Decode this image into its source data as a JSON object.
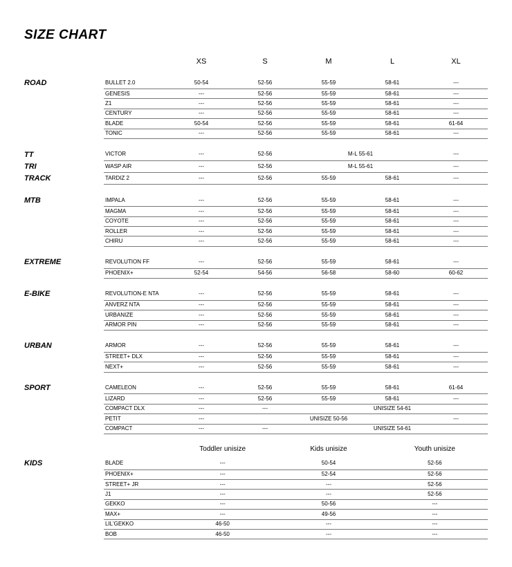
{
  "title": "SIZE CHART",
  "headers": [
    "XS",
    "S",
    "M",
    "L",
    "XL"
  ],
  "kidsHeaders": [
    "Toddler unisize",
    "Kids unisize",
    "Youth unisize"
  ],
  "sections": [
    {
      "category": "ROAD",
      "catRows": 1,
      "rows": [
        {
          "model": "BULLET 2.0",
          "cells": [
            "50-54",
            "52-56",
            "55-59",
            "58-61",
            "---"
          ]
        },
        {
          "model": "GENESIS",
          "cells": [
            "---",
            "52-56",
            "55-59",
            "58-61",
            "---"
          ]
        },
        {
          "model": "Z1",
          "cells": [
            "---",
            "52-56",
            "55-59",
            "58-61",
            "---"
          ]
        },
        {
          "model": "CENTURY",
          "cells": [
            "---",
            "52-56",
            "55-59",
            "58-61",
            "---"
          ]
        },
        {
          "model": "BLADE",
          "cells": [
            "50-54",
            "52-56",
            "55-59",
            "58-61",
            "61-64"
          ]
        },
        {
          "model": "TONIC",
          "cells": [
            "---",
            "52-56",
            "55-59",
            "58-61",
            "---"
          ]
        }
      ]
    },
    {
      "category": [
        "TT",
        "TRI",
        "TRACK"
      ],
      "catRows": 3,
      "rows": [
        {
          "model": "VICTOR",
          "cells": [
            "---",
            "52-56",
            {
              "span": 2,
              "text": "M-L 55-61"
            },
            "---"
          ]
        },
        {
          "model": "WASP AIR",
          "cells": [
            "---",
            "52-56",
            {
              "span": 2,
              "text": "M-L 55-61"
            },
            "---"
          ]
        },
        {
          "model": "TARDIZ 2",
          "cells": [
            "---",
            "52-56",
            "55-59",
            "58-61",
            "---"
          ]
        }
      ]
    },
    {
      "category": "MTB",
      "catRows": 1,
      "rows": [
        {
          "model": "IMPALA",
          "cells": [
            "---",
            "52-56",
            "55-59",
            "58-61",
            "---"
          ]
        },
        {
          "model": "MAGMA",
          "cells": [
            "---",
            "52-56",
            "55-59",
            "58-61",
            "---"
          ]
        },
        {
          "model": "COYOTE",
          "cells": [
            "---",
            "52-56",
            "55-59",
            "58-61",
            "---"
          ]
        },
        {
          "model": "ROLLER",
          "cells": [
            "---",
            "52-56",
            "55-59",
            "58-61",
            "---"
          ]
        },
        {
          "model": "CHIRU",
          "cells": [
            "---",
            "52-56",
            "55-59",
            "58-61",
            "---"
          ]
        }
      ]
    },
    {
      "category": "EXTREME",
      "catRows": 1,
      "rows": [
        {
          "model": "REVOLUTION FF",
          "cells": [
            "---",
            "52-56",
            "55-59",
            "58-61",
            "---"
          ]
        },
        {
          "model": "PHOENIX+",
          "cells": [
            "52-54",
            "54-56",
            "56-58",
            "58-60",
            "60-62"
          ]
        }
      ]
    },
    {
      "category": "E-BIKE",
      "catRows": 1,
      "rows": [
        {
          "model": "REVOLUTION-E NTA",
          "cells": [
            "---",
            "52-56",
            "55-59",
            "58-61",
            "---"
          ]
        },
        {
          "model": "ANVERZ NTA",
          "cells": [
            "---",
            "52-56",
            "55-59",
            "58-61",
            "---"
          ]
        },
        {
          "model": "URBANIZE",
          "cells": [
            "---",
            "52-56",
            "55-59",
            "58-61",
            "---"
          ]
        },
        {
          "model": "ARMOR PIN",
          "cells": [
            "---",
            "52-56",
            "55-59",
            "58-61",
            "---"
          ]
        }
      ]
    },
    {
      "category": "URBAN",
      "catRows": 1,
      "rows": [
        {
          "model": "ARMOR",
          "cells": [
            "---",
            "52-56",
            "55-59",
            "58-61",
            "---"
          ]
        },
        {
          "model": "STREET+ DLX",
          "cells": [
            "---",
            "52-56",
            "55-59",
            "58-61",
            "---"
          ]
        },
        {
          "model": "NEXT+",
          "cells": [
            "---",
            "52-56",
            "55-59",
            "58-61",
            "---"
          ]
        }
      ]
    },
    {
      "category": "SPORT",
      "catRows": 1,
      "rows": [
        {
          "model": "CAMELEON",
          "cells": [
            "---",
            "52-56",
            "55-59",
            "58-61",
            "61-64"
          ]
        },
        {
          "model": "LIZARD",
          "cells": [
            "---",
            "52-56",
            "55-59",
            "58-61",
            "---"
          ]
        },
        {
          "model": "COMPACT DLX",
          "cells": [
            "---",
            "---",
            {
              "span": 3,
              "text": "UNISIZE 54-61"
            }
          ]
        },
        {
          "model": "PETIT",
          "cells": [
            "---",
            {
              "span": 3,
              "text": "UNISIZE 50-56"
            },
            "---"
          ]
        },
        {
          "model": "COMPACT",
          "cells": [
            "---",
            "---",
            {
              "span": 3,
              "text": "UNISIZE 54-61"
            }
          ]
        }
      ]
    }
  ],
  "kids": {
    "category": "KIDS",
    "rows": [
      {
        "model": "BLADE",
        "cells": [
          "---",
          "50-54",
          "52-56"
        ]
      },
      {
        "model": "PHOENIX+",
        "cells": [
          "---",
          "52-54",
          "52-56"
        ]
      },
      {
        "model": "STREET+ JR",
        "cells": [
          "---",
          "---",
          "52-56"
        ]
      },
      {
        "model": "J1",
        "cells": [
          "---",
          "---",
          "52-56"
        ]
      },
      {
        "model": "GEKKO",
        "cells": [
          "---",
          "50-56",
          "---"
        ]
      },
      {
        "model": "MAX+",
        "cells": [
          "---",
          "49-56",
          "---"
        ]
      },
      {
        "model": "LIL'GEKKO",
        "cells": [
          "46-50",
          "---",
          "---"
        ]
      },
      {
        "model": "BOB",
        "cells": [
          "46-50",
          "---",
          "---"
        ]
      }
    ]
  },
  "style": {
    "bg": "#ffffff",
    "text": "#000000",
    "border": "#777777",
    "titleSize": 19,
    "catSize": 11,
    "cellSize": 8
  }
}
